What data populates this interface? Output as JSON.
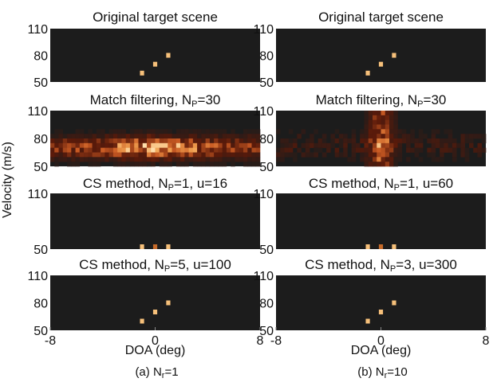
{
  "chart_data": {
    "type": "heatmap",
    "ylabel": "Velocity (m/s)",
    "xlabel": "DOA (deg)",
    "x_ticks": [
      "-8",
      "0",
      "8"
    ],
    "xlim": [
      -8,
      8
    ],
    "ylim": [
      50,
      110
    ],
    "y_ticks": [
      "50",
      "80",
      "110"
    ],
    "y_ticks_short": [
      "50",
      "110"
    ],
    "colormap": {
      "background": "#1c1c1c",
      "peak": "#ffd9a0",
      "mid": "#e8782a",
      "low": "#5a1a0a"
    },
    "columns": [
      {
        "caption_prefix": "(a) N",
        "caption_sub": "r",
        "caption_suffix": "=1",
        "panels": [
          {
            "title": "Original target scene",
            "targets": [
              [
                -1,
                60
              ],
              [
                0,
                70
              ],
              [
                1,
                80
              ]
            ]
          },
          {
            "title_prefix": "Match filtering, N",
            "title_sub": "P",
            "title_suffix": "=30",
            "pattern": "dense"
          },
          {
            "title_prefix": "CS method, N",
            "title_sub": "P",
            "title_suffix": "=1, u=16",
            "targets": [
              [
                -1,
                50
              ],
              [
                0,
                50
              ],
              [
                1,
                50
              ]
            ]
          },
          {
            "title_prefix": "CS method, N",
            "title_sub": "P",
            "title_suffix": "=5, u=100",
            "targets": [
              [
                -1,
                60
              ],
              [
                0,
                70
              ],
              [
                1,
                80
              ]
            ]
          }
        ]
      },
      {
        "caption_prefix": "(b) N",
        "caption_sub": "r",
        "caption_suffix": "=10",
        "panels": [
          {
            "title": "Original target scene",
            "targets": [
              [
                -1,
                60
              ],
              [
                0,
                70
              ],
              [
                1,
                80
              ]
            ]
          },
          {
            "title_prefix": "Match filtering, N",
            "title_sub": "P",
            "title_suffix": "=30",
            "pattern": "sparse"
          },
          {
            "title_prefix": "CS method, N",
            "title_sub": "P",
            "title_suffix": "=1, u=60",
            "targets": [
              [
                -1,
                50
              ],
              [
                0,
                50
              ],
              [
                1,
                50
              ]
            ]
          },
          {
            "title_prefix": "CS method, N",
            "title_sub": "P",
            "title_suffix": "=3, u=300",
            "targets": [
              [
                -1,
                60
              ],
              [
                0,
                70
              ],
              [
                1,
                80
              ]
            ]
          }
        ]
      }
    ]
  }
}
